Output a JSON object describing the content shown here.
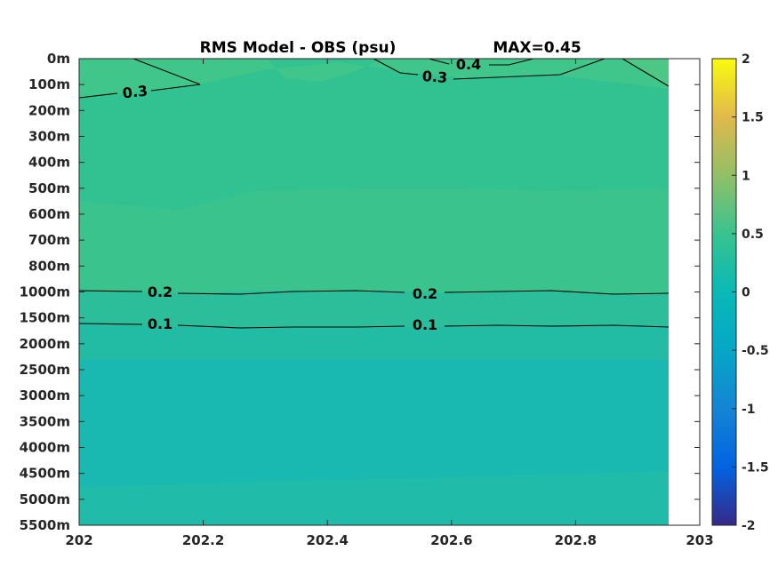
{
  "chart_data": {
    "type": "heatmap",
    "title": "RMS Model - OBS (psu)",
    "annotation": "MAX=0.45",
    "colormap": "parula",
    "x_ticks": [
      "202",
      "202.2",
      "202.4",
      "202.6",
      "202.8",
      "203"
    ],
    "xlim": [
      202,
      203
    ],
    "data_x_end": 202.95,
    "y_ticks": [
      "0m",
      "100m",
      "200m",
      "300m",
      "400m",
      "500m",
      "600m",
      "700m",
      "800m",
      "1000m",
      "1500m",
      "2000m",
      "2500m",
      "3000m",
      "3500m",
      "4000m",
      "4500m",
      "5000m",
      "5500m"
    ],
    "colorbar": {
      "ticks": [
        "2",
        "1.5",
        "1",
        "0.5",
        "0",
        "-0.5",
        "-1",
        "-1.5",
        "-2"
      ],
      "clim": [
        -2,
        2
      ]
    },
    "bands": [
      {
        "from": "0m",
        "to": "100m",
        "value": 0.33
      },
      {
        "from": "100m",
        "to": "500m",
        "value": 0.28
      },
      {
        "from": "500m",
        "to": "1000m",
        "value": 0.32
      },
      {
        "from": "1000m",
        "to": "1500m",
        "value": 0.18
      },
      {
        "from": "1500m",
        "to": "2500m",
        "value": 0.12
      },
      {
        "from": "2500m",
        "to": "4500m",
        "value": 0.07
      },
      {
        "from": "4500m",
        "to": "5500m",
        "value": 0.12
      }
    ],
    "contours": [
      {
        "level": 0.2,
        "label": "0.2",
        "depth": "1000m"
      },
      {
        "level": 0.1,
        "label": "0.1",
        "depth": "1500m"
      },
      {
        "level": 0.3,
        "label": "0.3",
        "region": "near surface, left"
      },
      {
        "level": 0.3,
        "label": "0.3",
        "region": "near surface, right"
      },
      {
        "level": 0.4,
        "label": "0.4",
        "region": "near surface, right"
      }
    ]
  }
}
